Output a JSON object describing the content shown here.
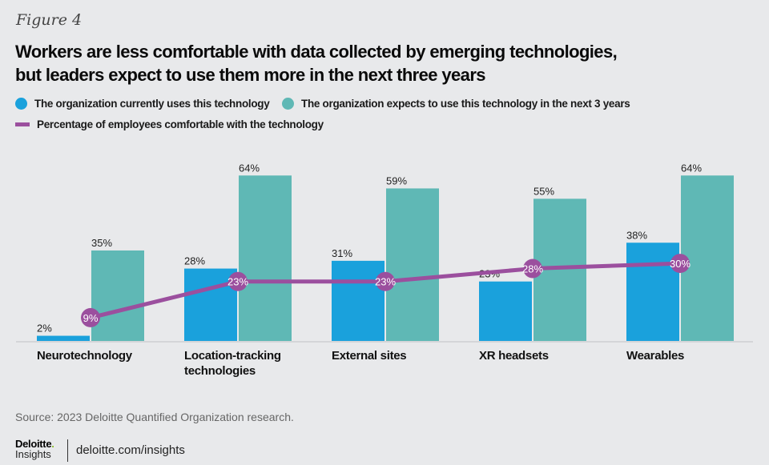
{
  "figure_label": "Figure 4",
  "title_line1": "Workers are less comfortable with data collected by emerging technologies,",
  "title_line2": "but leaders expect to use them more in the next three years",
  "legend": [
    {
      "label": "The organization currently uses this technology",
      "color": "#1aa1dc",
      "shape": "circle"
    },
    {
      "label": "The organization expects to use this technology in the next 3 years",
      "color": "#5fb8b5",
      "shape": "circle"
    },
    {
      "label": "Percentage of employees comfortable with the technology",
      "color": "#9b4f9e",
      "shape": "line"
    }
  ],
  "source": "Source: 2023 Deloitte Quantified Organization research.",
  "brand": {
    "name": "Deloitte",
    "dot": ".",
    "sub": "Insights",
    "url": "deloitte.com/insights"
  },
  "chart_data": {
    "type": "bar",
    "title": "Workers are less comfortable with data collected by emerging technologies, but leaders expect to use them more in the next three years",
    "categories": [
      [
        "Neurotechnology"
      ],
      [
        "Location-tracking",
        "technologies"
      ],
      [
        "External sites"
      ],
      [
        "XR headsets"
      ],
      [
        "Wearables"
      ]
    ],
    "series": [
      {
        "name": "The organization currently uses this technology",
        "type": "bar",
        "color": "#1aa1dc",
        "values": [
          2,
          28,
          31,
          23,
          38
        ]
      },
      {
        "name": "The organization expects to use this technology in the next 3 years",
        "type": "bar",
        "color": "#5fb8b5",
        "values": [
          35,
          64,
          59,
          55,
          64
        ]
      },
      {
        "name": "Percentage of employees comfortable with the technology",
        "type": "line",
        "color": "#9b4f9e",
        "values": [
          9,
          23,
          23,
          28,
          30
        ]
      }
    ],
    "value_suffix": "%",
    "ylim": [
      0,
      100
    ],
    "xlabel": "",
    "ylabel": "",
    "grid": false,
    "legend_position": "top-left"
  }
}
